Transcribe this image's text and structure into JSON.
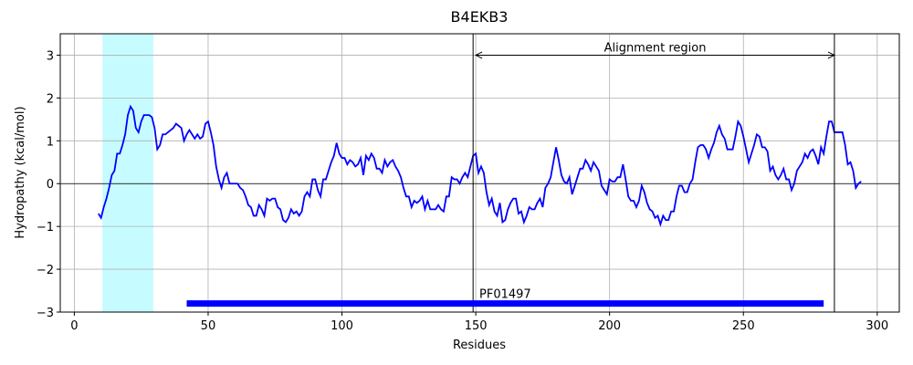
{
  "chart_data": {
    "type": "line",
    "title": "B4EKB3",
    "xlabel": "Residues",
    "ylabel": "Hydropathy (kcal/mol)",
    "x": [
      9,
      10,
      11,
      12,
      13,
      14,
      15,
      16,
      17,
      18,
      19,
      20,
      21,
      22,
      23,
      24,
      25,
      26,
      27,
      28,
      29,
      30,
      31,
      32,
      33,
      34,
      35,
      36,
      37,
      38,
      39,
      40,
      41,
      42,
      43,
      44,
      45,
      46,
      47,
      48,
      49,
      50,
      51,
      52,
      53,
      54,
      55,
      56,
      57,
      58,
      59,
      60,
      61,
      62,
      63,
      64,
      65,
      66,
      67,
      68,
      69,
      70,
      71,
      72,
      73,
      74,
      75,
      76,
      77,
      78,
      79,
      80,
      81,
      82,
      83,
      84,
      85,
      86,
      87,
      88,
      89,
      90,
      91,
      92,
      93,
      94,
      95,
      96,
      97,
      98,
      99,
      100,
      101,
      102,
      103,
      104,
      105,
      106,
      107,
      108,
      109,
      110,
      111,
      112,
      113,
      114,
      115,
      116,
      117,
      118,
      119,
      120,
      121,
      122,
      123,
      124,
      125,
      126,
      127,
      128,
      129,
      130,
      131,
      132,
      133,
      134,
      135,
      136,
      137,
      138,
      139,
      140,
      141,
      142,
      143,
      144,
      145,
      146,
      147,
      148,
      149,
      150,
      151,
      152,
      153,
      154,
      155,
      156,
      157,
      158,
      159,
      160,
      161,
      162,
      163,
      164,
      165,
      166,
      167,
      168,
      169,
      170,
      171,
      172,
      173,
      174,
      175,
      176,
      177,
      178,
      179,
      180,
      181,
      182,
      183,
      184,
      185,
      186,
      187,
      188,
      189,
      190,
      191,
      192,
      193,
      194,
      195,
      196,
      197,
      198,
      199,
      200,
      201,
      202,
      203,
      204,
      205,
      206,
      207,
      208,
      209,
      210,
      211,
      212,
      213,
      214,
      215,
      216,
      217,
      218,
      219,
      220,
      221,
      222,
      223,
      224,
      225,
      226,
      227,
      228,
      229,
      230,
      231,
      232,
      233,
      234,
      235,
      236,
      237,
      238,
      239,
      240,
      241,
      242,
      243,
      244,
      245,
      246,
      247,
      248,
      249,
      250,
      251,
      252,
      253,
      254,
      255,
      256,
      257,
      258,
      259,
      260,
      261,
      262,
      263,
      264,
      265,
      266,
      267,
      268,
      269,
      270,
      271,
      272,
      273,
      274,
      275,
      276,
      277,
      278,
      279,
      280,
      281,
      282,
      283,
      284,
      285,
      286,
      287,
      288,
      289,
      290,
      291,
      292,
      293,
      294
    ],
    "values": [
      -0.7,
      -0.8,
      -0.55,
      -0.35,
      -0.1,
      0.2,
      0.3,
      0.7,
      0.7,
      0.9,
      1.15,
      1.6,
      1.8,
      1.7,
      1.3,
      1.2,
      1.45,
      1.6,
      1.6,
      1.6,
      1.55,
      1.3,
      0.8,
      0.9,
      1.15,
      1.15,
      1.2,
      1.25,
      1.3,
      1.4,
      1.35,
      1.3,
      1.0,
      1.15,
      1.25,
      1.15,
      1.05,
      1.15,
      1.05,
      1.1,
      1.4,
      1.45,
      1.2,
      0.9,
      0.4,
      0.1,
      -0.1,
      0.15,
      0.25,
      0.0,
      0.0,
      0.0,
      0.0,
      -0.1,
      -0.15,
      -0.3,
      -0.5,
      -0.55,
      -0.75,
      -0.75,
      -0.5,
      -0.6,
      -0.75,
      -0.35,
      -0.4,
      -0.35,
      -0.35,
      -0.55,
      -0.6,
      -0.85,
      -0.9,
      -0.8,
      -0.6,
      -0.7,
      -0.65,
      -0.75,
      -0.65,
      -0.3,
      -0.2,
      -0.3,
      0.1,
      0.1,
      -0.15,
      -0.3,
      0.1,
      0.1,
      0.3,
      0.5,
      0.65,
      0.95,
      0.7,
      0.6,
      0.6,
      0.45,
      0.55,
      0.5,
      0.4,
      0.45,
      0.6,
      0.2,
      0.65,
      0.55,
      0.7,
      0.6,
      0.35,
      0.35,
      0.25,
      0.55,
      0.4,
      0.5,
      0.55,
      0.4,
      0.3,
      0.15,
      -0.1,
      -0.3,
      -0.3,
      -0.55,
      -0.4,
      -0.45,
      -0.4,
      -0.3,
      -0.6,
      -0.4,
      -0.6,
      -0.6,
      -0.6,
      -0.5,
      -0.6,
      -0.65,
      -0.3,
      -0.3,
      0.15,
      0.1,
      0.1,
      0.0,
      0.15,
      0.25,
      0.15,
      0.4,
      0.65,
      0.7,
      0.25,
      0.4,
      0.25,
      -0.2,
      -0.5,
      -0.35,
      -0.65,
      -0.75,
      -0.45,
      -0.9,
      -0.85,
      -0.6,
      -0.45,
      -0.35,
      -0.35,
      -0.7,
      -0.65,
      -0.9,
      -0.75,
      -0.55,
      -0.6,
      -0.6,
      -0.45,
      -0.35,
      -0.55,
      -0.1,
      0.0,
      0.15,
      0.5,
      0.85,
      0.55,
      0.2,
      0.05,
      0.0,
      0.15,
      -0.25,
      -0.05,
      0.15,
      0.35,
      0.35,
      0.55,
      0.45,
      0.3,
      0.5,
      0.4,
      0.3,
      -0.05,
      -0.15,
      -0.25,
      0.1,
      0.05,
      0.05,
      0.15,
      0.15,
      0.45,
      0.1,
      -0.3,
      -0.4,
      -0.4,
      -0.55,
      -0.4,
      -0.05,
      -0.2,
      -0.45,
      -0.6,
      -0.65,
      -0.8,
      -0.75,
      -0.95,
      -0.75,
      -0.85,
      -0.85,
      -0.65,
      -0.65,
      -0.3,
      -0.05,
      -0.05,
      -0.2,
      -0.2,
      0.0,
      0.1,
      0.5,
      0.85,
      0.9,
      0.9,
      0.8,
      0.6,
      0.8,
      0.95,
      1.2,
      1.35,
      1.15,
      1.05,
      0.8,
      0.8,
      0.8,
      1.1,
      1.45,
      1.35,
      1.1,
      0.8,
      0.5,
      0.7,
      0.9,
      1.15,
      1.1,
      0.85,
      0.85,
      0.75,
      0.3,
      0.4,
      0.2,
      0.1,
      0.2,
      0.35,
      0.1,
      0.1,
      -0.15,
      0.0,
      0.3,
      0.4,
      0.5,
      0.7,
      0.6,
      0.75,
      0.8,
      0.65,
      0.45,
      0.85,
      0.7,
      1.1,
      1.45,
      1.45,
      1.2,
      1.2,
      1.2,
      1.2,
      0.9,
      0.45,
      0.5,
      0.3,
      -0.1,
      0.0,
      0.05
    ],
    "color": "#0000ff",
    "xlim": [
      -5.25,
      308.25
    ],
    "ylim": [
      -3,
      3.5
    ],
    "xticks": [
      0,
      50,
      100,
      150,
      200,
      250,
      300
    ],
    "yticks": [
      {
        "value": -3,
        "label": "−3"
      },
      {
        "value": -2,
        "label": "−2"
      },
      {
        "value": -1,
        "label": "−1"
      },
      0,
      1,
      2,
      3
    ],
    "grid": true,
    "hline": 0,
    "span": {
      "x": [
        10.5,
        29.5
      ],
      "color": "#c6fcff"
    },
    "vlines": [
      149,
      284
    ],
    "alignment": {
      "label": "Alignment region",
      "x": [
        150,
        284
      ],
      "y": 3
    },
    "domain": {
      "label": "PF01497",
      "x": [
        42,
        280
      ],
      "y": -2.8,
      "color": "#0000ff"
    }
  }
}
